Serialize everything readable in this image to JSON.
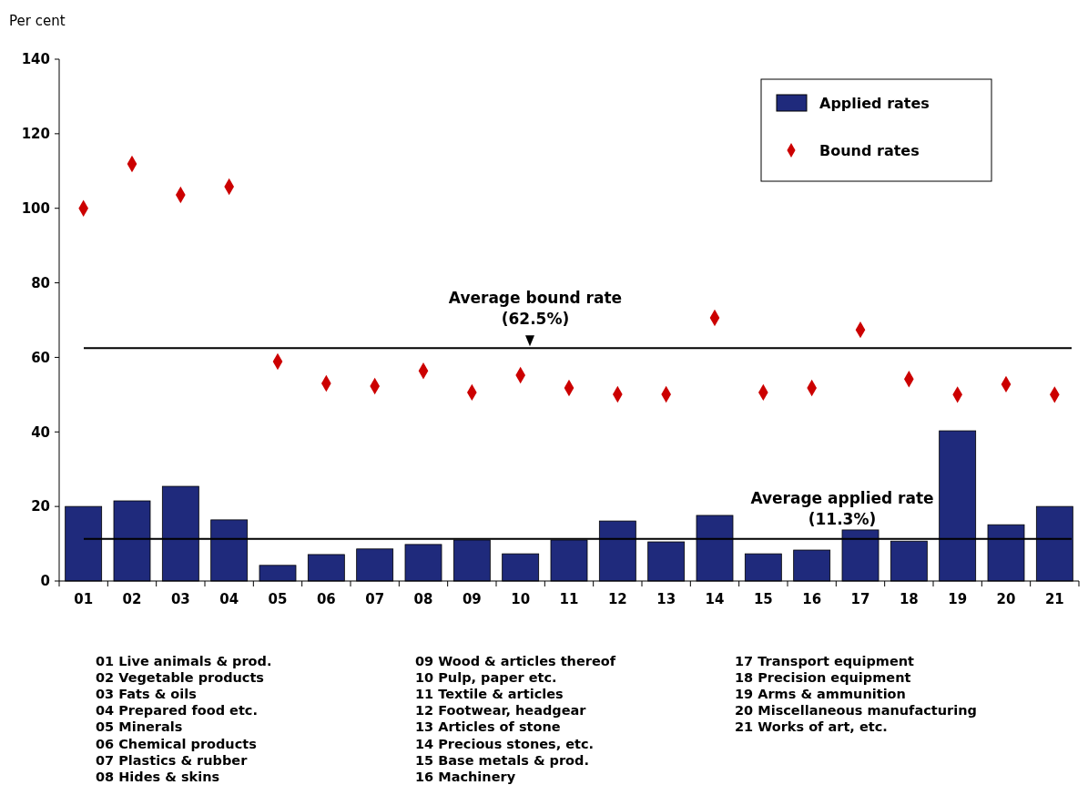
{
  "chart_data": {
    "type": "bar",
    "ylabel": "Per cent",
    "categories": [
      "01",
      "02",
      "03",
      "04",
      "05",
      "06",
      "07",
      "08",
      "09",
      "10",
      "11",
      "12",
      "13",
      "14",
      "15",
      "16",
      "17",
      "18",
      "19",
      "20",
      "21"
    ],
    "series": [
      {
        "name": "Applied rates",
        "color": "#1f2a7c",
        "values": [
          20.0,
          21.5,
          25.4,
          16.4,
          4.2,
          7.1,
          8.6,
          9.8,
          11.0,
          7.3,
          11.0,
          16.1,
          10.5,
          17.6,
          7.3,
          8.3,
          13.7,
          10.7,
          40.3,
          15.1,
          20.0
        ]
      },
      {
        "name": "Bound rates",
        "type": "scatter",
        "color": "#cc0000",
        "marker": "diamond",
        "values": [
          100,
          111.9,
          103.6,
          105.8,
          58.9,
          53.0,
          52.3,
          56.4,
          50.6,
          55.2,
          51.8,
          50.1,
          50.1,
          70.6,
          50.6,
          51.8,
          67.4,
          54.2,
          50,
          52.8,
          50
        ]
      }
    ],
    "ylim": [
      0,
      140
    ],
    "yticks": [
      0,
      20,
      40,
      60,
      80,
      100,
      120,
      140
    ],
    "grid": false,
    "legend": "top right",
    "ref_lines": [
      {
        "axis": "y",
        "value": 62.5,
        "label": "Average bound rate\n(62.5%)",
        "color": "#000000"
      },
      {
        "axis": "y",
        "value": 11.3,
        "label": "Average applied rate\n(11.3%)",
        "color": "#000000"
      }
    ],
    "annotations": [
      "01 Live animals & prod.",
      "02 Vegetable products",
      "03 Fats & oils",
      "04 Prepared food etc.",
      "05 Minerals",
      "06 Chemical products",
      "07 Plastics & rubber",
      "08 Hides & skins",
      "09 Wood & articles thereof",
      "10 Pulp, paper etc.",
      "11 Textile & articles",
      "12 Footwear, headgear",
      "13 Articles of stone",
      "14 Precious stones, etc.",
      "15 Base metals & prod.",
      "16 Machinery",
      "17 Transport equipment",
      "18 Precision equipment",
      "19 Arms & ammunition",
      "20 Miscellaneous manufacturing",
      "21 Works of art, etc."
    ]
  }
}
